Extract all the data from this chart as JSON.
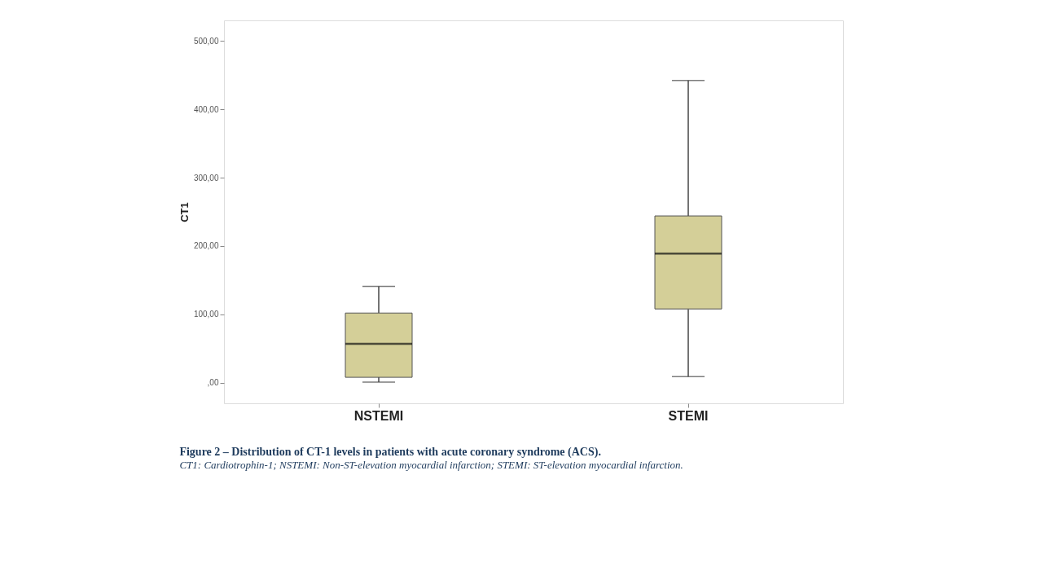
{
  "chart_data": {
    "type": "box",
    "title": "Figure 2 – Distribution of CT-1 levels in patients with acute coronary syndrome (ACS).",
    "annotations": [
      "CT1: Cardiotrophin-1; NSTEMI: Non-ST-elevation myocardial infarction; STEMI: ST-elevation myocardial infarction."
    ],
    "ylabel": "CT1",
    "categories": [
      "NSTEMI",
      "STEMI"
    ],
    "color": "#d4cf98",
    "boxes": [
      {
        "low": 1,
        "q1": 8,
        "median": 57,
        "q3": 102,
        "high": 141
      },
      {
        "low": 9,
        "q1": 108,
        "median": 189,
        "q3": 244,
        "high": 442
      }
    ],
    "ylim": [
      -30,
      530
    ],
    "yticks": [
      {
        "value": 0,
        "label": ",00"
      },
      {
        "value": 100,
        "label": "100,00"
      },
      {
        "value": 200,
        "label": "200,00"
      },
      {
        "value": 300,
        "label": "300,00"
      },
      {
        "value": 400,
        "label": "400,00"
      },
      {
        "value": 500,
        "label": "500,00"
      }
    ],
    "grid": false
  }
}
